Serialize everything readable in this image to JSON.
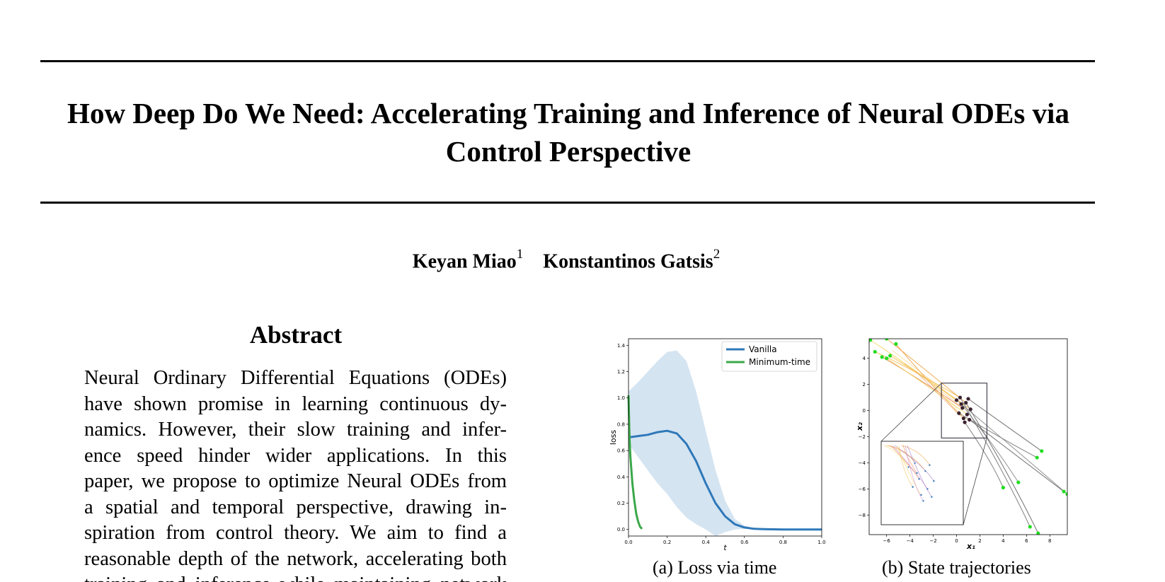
{
  "paper": {
    "title_line1": "How Deep Do We Need: Accelerating Training and Inference of Neural ODEs via",
    "title_line2": "Control Perspective",
    "authors": [
      {
        "name": "Keyan Miao",
        "affiliation": "1"
      },
      {
        "name": "Konstantinos Gatsis",
        "affiliation": "2"
      }
    ],
    "abstract_heading": "Abstract",
    "abstract_lines": [
      "Neural Ordinary Differential Equations (ODEs)",
      "have shown promise in learning continuous dy-",
      "namics.  However, their slow training and infer-",
      "ence speed hinder wider applications.  In this",
      "paper, we propose to optimize Neural ODEs from",
      "a spatial and temporal perspective, drawing in-",
      "spiration from control theory.  We aim to find a",
      "reasonable depth of the network, accelerating both",
      "training and inference while maintaining network"
    ]
  },
  "figures": {
    "a": {
      "tag": "(a)",
      "caption": "Loss via time"
    },
    "b": {
      "tag": "(b)",
      "caption": "State trajectories"
    }
  },
  "chart_data": [
    {
      "type": "line",
      "xlabel": "t",
      "ylabel": "loss",
      "xlim": [
        0.0,
        1.0
      ],
      "ylim": [
        -0.05,
        1.45
      ],
      "x_ticks": [
        "0.0",
        "0.2",
        "0.4",
        "0.6",
        "0.8",
        "1.0"
      ],
      "y_ticks": [
        "0.0",
        "0.2",
        "0.4",
        "0.6",
        "0.8",
        "1.0",
        "1.2",
        "1.4"
      ],
      "legend_position": "top-right",
      "series": [
        {
          "name": "Vanilla",
          "color": "#2e78b9",
          "x": [
            0.0,
            0.05,
            0.1,
            0.15,
            0.2,
            0.25,
            0.3,
            0.35,
            0.4,
            0.45,
            0.5,
            0.55,
            0.6,
            0.65,
            0.7,
            0.8,
            0.9,
            1.0
          ],
          "y": [
            0.7,
            0.71,
            0.72,
            0.74,
            0.75,
            0.73,
            0.65,
            0.52,
            0.35,
            0.2,
            0.1,
            0.04,
            0.015,
            0.005,
            0.002,
            0.0,
            0.0,
            0.0
          ],
          "band_low": [
            0.65,
            0.55,
            0.45,
            0.35,
            0.27,
            0.17,
            0.09,
            0.04,
            0.0,
            -0.05,
            -0.02,
            0.0,
            0.005,
            0.003,
            0.001,
            0.0,
            0.0,
            0.0
          ],
          "band_high": [
            1.05,
            1.12,
            1.2,
            1.28,
            1.35,
            1.36,
            1.28,
            1.05,
            0.75,
            0.45,
            0.22,
            0.08,
            0.03,
            0.01,
            0.004,
            0.0,
            0.0,
            0.0
          ]
        },
        {
          "name": "Minimum-time",
          "color": "#3aa84a",
          "x": [
            0.0,
            0.005,
            0.01,
            0.02,
            0.03,
            0.04,
            0.05,
            0.06,
            0.07
          ],
          "y": [
            1.02,
            0.7,
            0.55,
            0.35,
            0.22,
            0.12,
            0.06,
            0.02,
            0.005
          ]
        }
      ]
    },
    {
      "type": "scatter",
      "xlabel": "x₁",
      "ylabel": "x₂",
      "xlim": [
        -7.5,
        9.5
      ],
      "ylim": [
        -9.5,
        5.5
      ],
      "x_ticks": [
        "−6",
        "−4",
        "−2",
        "0",
        "2",
        "4",
        "6",
        "8"
      ],
      "y_ticks": [
        "4",
        "2",
        "0",
        "−2",
        "−4",
        "−6",
        "−8"
      ],
      "endpoint_color": "#22dd22",
      "cluster_color": "#3a2230",
      "endpoints": [
        [
          -7.4,
          5.4
        ],
        [
          -7.0,
          4.5
        ],
        [
          -6.0,
          5.5
        ],
        [
          -6.4,
          4.1
        ],
        [
          -6.0,
          4.0
        ],
        [
          -5.7,
          4.2
        ],
        [
          -5.2,
          5.1
        ],
        [
          6.9,
          -3.6
        ],
        [
          7.3,
          -3.1
        ],
        [
          5.3,
          -5.5
        ],
        [
          4.0,
          -5.9
        ],
        [
          9.2,
          -6.2
        ],
        [
          9.5,
          -6.4
        ],
        [
          6.3,
          -8.9
        ],
        [
          7.0,
          -9.4
        ]
      ],
      "cluster": [
        [
          0.0,
          0.8
        ],
        [
          0.3,
          1.0
        ],
        [
          0.8,
          0.6
        ],
        [
          0.5,
          0.2
        ],
        [
          0.9,
          -0.3
        ],
        [
          1.2,
          0.1
        ],
        [
          0.6,
          -0.6
        ],
        [
          0.2,
          -0.2
        ],
        [
          1.0,
          0.9
        ],
        [
          0.4,
          0.5
        ],
        [
          0.7,
          -0.9
        ],
        [
          1.1,
          -0.7
        ]
      ]
    }
  ]
}
